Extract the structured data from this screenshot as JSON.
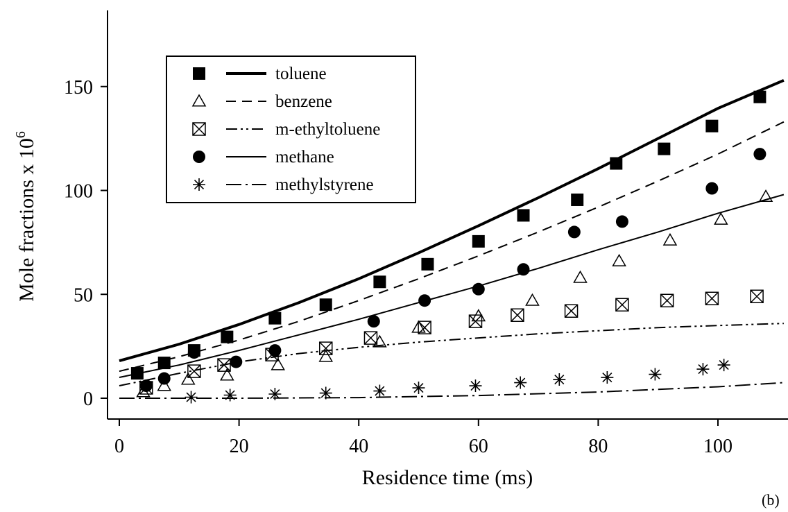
{
  "chart_data": {
    "type": "scatter",
    "panel_label": "(b)",
    "xlabel": "Residence time (ms)",
    "ylabel": "Mole fractions x 10",
    "ylabel_superscript": "6",
    "xlim": [
      -2,
      111
    ],
    "ylim": [
      -10,
      185
    ],
    "x_ticks": [
      0,
      20,
      40,
      60,
      80,
      100
    ],
    "y_ticks": [
      0,
      50,
      100,
      150
    ],
    "x_tick_labels": [
      "0",
      "20",
      "40",
      "60",
      "80",
      "100"
    ],
    "y_tick_labels": [
      "0",
      "50",
      "100",
      "150"
    ],
    "grid": false,
    "legend_position": "top-left",
    "series": [
      {
        "name": "toluene",
        "marker": "filled-square",
        "line_style": "thick-solid",
        "points": [
          [
            3,
            12
          ],
          [
            7.5,
            17
          ],
          [
            12.5,
            23
          ],
          [
            18,
            29.5
          ],
          [
            26,
            38.5
          ],
          [
            34.5,
            45
          ],
          [
            43.5,
            56
          ],
          [
            51.5,
            64.5
          ],
          [
            60,
            75.5
          ],
          [
            67.5,
            88
          ],
          [
            76.5,
            95.5
          ],
          [
            83,
            113
          ],
          [
            91,
            120
          ],
          [
            99,
            131
          ],
          [
            107,
            145
          ]
        ],
        "model": [
          [
            0,
            18
          ],
          [
            10,
            26
          ],
          [
            20,
            35.5
          ],
          [
            30,
            46
          ],
          [
            40,
            57.5
          ],
          [
            50,
            70
          ],
          [
            60,
            83
          ],
          [
            70,
            96.5
          ],
          [
            80,
            110.5
          ],
          [
            90,
            125
          ],
          [
            100,
            139.5
          ],
          [
            111,
            153
          ]
        ]
      },
      {
        "name": "benzene",
        "marker": "open-triangle",
        "line_style": "dashed",
        "points": [
          [
            4,
            3
          ],
          [
            7.5,
            6
          ],
          [
            11.5,
            9
          ],
          [
            18,
            11
          ],
          [
            26.5,
            16
          ],
          [
            34.5,
            20
          ],
          [
            43.5,
            27
          ],
          [
            50,
            34
          ],
          [
            60,
            39.5
          ],
          [
            69,
            47
          ],
          [
            77,
            58
          ],
          [
            83.5,
            66
          ],
          [
            92,
            76
          ],
          [
            100.5,
            86
          ],
          [
            108,
            97
          ]
        ],
        "model": [
          [
            0,
            13
          ],
          [
            10,
            20
          ],
          [
            20,
            28
          ],
          [
            30,
            37
          ],
          [
            40,
            47
          ],
          [
            50,
            57.5
          ],
          [
            60,
            68.5
          ],
          [
            70,
            80
          ],
          [
            80,
            92
          ],
          [
            90,
            104.5
          ],
          [
            100,
            117.5
          ],
          [
            111,
            133
          ]
        ]
      },
      {
        "name": "m-ethyltoluene",
        "marker": "bowtie",
        "line_style": "dash-dot-dot",
        "points": [
          [
            4.5,
            5
          ],
          [
            12.5,
            13
          ],
          [
            17.5,
            16
          ],
          [
            25.5,
            21
          ],
          [
            34.5,
            24
          ],
          [
            42,
            29
          ],
          [
            51,
            34
          ],
          [
            59.5,
            37
          ],
          [
            66.5,
            40
          ],
          [
            75.5,
            42
          ],
          [
            84,
            45
          ],
          [
            91.5,
            47
          ],
          [
            99,
            48
          ],
          [
            106.5,
            49
          ]
        ],
        "model": [
          [
            0,
            6
          ],
          [
            10,
            12
          ],
          [
            20,
            17.5
          ],
          [
            30,
            21.5
          ],
          [
            40,
            24.5
          ],
          [
            50,
            27
          ],
          [
            60,
            29
          ],
          [
            70,
            31
          ],
          [
            80,
            32.5
          ],
          [
            90,
            34
          ],
          [
            100,
            35
          ],
          [
            111,
            36
          ]
        ]
      },
      {
        "name": "methane",
        "marker": "filled-circle",
        "line_style": "thin-solid",
        "points": [
          [
            4.5,
            6
          ],
          [
            7.5,
            9.5
          ],
          [
            12.5,
            22
          ],
          [
            19.5,
            17.5
          ],
          [
            26,
            23
          ],
          [
            42.5,
            37
          ],
          [
            51,
            47
          ],
          [
            60,
            52.5
          ],
          [
            67.5,
            62
          ],
          [
            76,
            80
          ],
          [
            84,
            85
          ],
          [
            99,
            101
          ],
          [
            107,
            117.5
          ]
        ],
        "model": [
          [
            0,
            10
          ],
          [
            10,
            16
          ],
          [
            20,
            23
          ],
          [
            30,
            30.5
          ],
          [
            40,
            38
          ],
          [
            50,
            46
          ],
          [
            60,
            54
          ],
          [
            70,
            62.5
          ],
          [
            80,
            71.5
          ],
          [
            90,
            80
          ],
          [
            100,
            89
          ],
          [
            111,
            98
          ]
        ]
      },
      {
        "name": "methylstyrene",
        "marker": "asterisk",
        "line_style": "long-dash-dot",
        "points": [
          [
            12,
            0.5
          ],
          [
            18.5,
            1.5
          ],
          [
            26,
            2
          ],
          [
            34.5,
            2.5
          ],
          [
            43.5,
            3.5
          ],
          [
            50,
            5
          ],
          [
            59.5,
            6
          ],
          [
            67,
            7.5
          ],
          [
            73.5,
            9
          ],
          [
            81.5,
            10
          ],
          [
            89.5,
            11.5
          ],
          [
            97.5,
            14
          ],
          [
            101,
            16
          ]
        ],
        "model": [
          [
            0,
            0
          ],
          [
            20,
            0
          ],
          [
            40,
            0.3
          ],
          [
            60,
            1.3
          ],
          [
            80,
            3
          ],
          [
            100,
            5.5
          ],
          [
            111,
            7.5
          ]
        ]
      }
    ]
  }
}
